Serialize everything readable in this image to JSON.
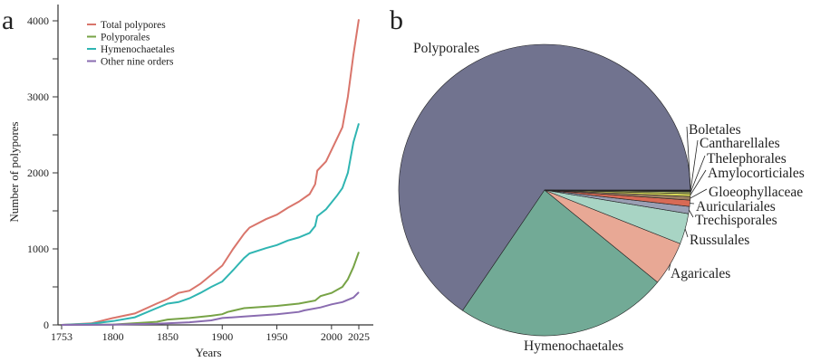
{
  "chart_data": [
    {
      "panel": "a",
      "type": "line",
      "xlabel": "Years",
      "ylabel": "Number of polypores",
      "xlim": [
        1753,
        2025
      ],
      "ylim": [
        0,
        4000
      ],
      "xticks": [
        1753,
        1800,
        1850,
        1900,
        1950,
        2000,
        2025
      ],
      "yticks": [
        0,
        1000,
        2000,
        3000,
        4000
      ],
      "legend_position": "top-left",
      "series": [
        {
          "name": "Total polypores",
          "color": "#d9756b",
          "x": [
            1753,
            1780,
            1800,
            1820,
            1840,
            1850,
            1860,
            1870,
            1880,
            1890,
            1900,
            1910,
            1920,
            1925,
            1940,
            1950,
            1960,
            1970,
            1980,
            1985,
            1987,
            1995,
            2005,
            2010,
            2015,
            2020,
            2025
          ],
          "y": [
            0,
            20,
            90,
            150,
            280,
            340,
            420,
            450,
            540,
            660,
            780,
            1000,
            1200,
            1280,
            1390,
            1450,
            1540,
            1620,
            1720,
            1850,
            2030,
            2150,
            2450,
            2600,
            3000,
            3550,
            4020
          ]
        },
        {
          "name": "Polyporales",
          "color": "#77a346",
          "x": [
            1753,
            1800,
            1840,
            1850,
            1870,
            1890,
            1900,
            1905,
            1920,
            1950,
            1970,
            1985,
            1990,
            2000,
            2010,
            2015,
            2020,
            2025
          ],
          "y": [
            0,
            5,
            40,
            70,
            90,
            120,
            140,
            170,
            220,
            250,
            280,
            320,
            380,
            420,
            500,
            600,
            760,
            960
          ]
        },
        {
          "name": "Hymenochaetales",
          "color": "#2fb5b2",
          "x": [
            1753,
            1780,
            1800,
            1820,
            1840,
            1850,
            1860,
            1870,
            1880,
            1890,
            1900,
            1910,
            1920,
            1925,
            1940,
            1950,
            1960,
            1970,
            1980,
            1985,
            1987,
            1995,
            2005,
            2010,
            2015,
            2020,
            2025
          ],
          "y": [
            0,
            15,
            50,
            100,
            220,
            280,
            300,
            350,
            420,
            500,
            570,
            720,
            880,
            940,
            1010,
            1050,
            1110,
            1150,
            1210,
            1300,
            1430,
            1520,
            1700,
            1800,
            2000,
            2400,
            2650
          ]
        },
        {
          "name": "Other nine orders",
          "color": "#8a6cb0",
          "x": [
            1753,
            1800,
            1840,
            1870,
            1890,
            1900,
            1920,
            1950,
            1970,
            1975,
            1990,
            2000,
            2010,
            2020,
            2025
          ],
          "y": [
            0,
            3,
            15,
            35,
            60,
            90,
            110,
            140,
            170,
            190,
            230,
            270,
            300,
            360,
            430
          ]
        }
      ]
    },
    {
      "panel": "b",
      "type": "pie",
      "unit": "percent (estimated)",
      "slices": [
        {
          "label": "Polyporales",
          "value": 65.5,
          "color": "#71738f"
        },
        {
          "label": "Hymenochaetales",
          "value": 23.6,
          "color": "#72aa96"
        },
        {
          "label": "Agaricales",
          "value": 4.9,
          "color": "#e8a895"
        },
        {
          "label": "Russulales",
          "value": 3.4,
          "color": "#a8d4c4"
        },
        {
          "label": "Trechisporales",
          "value": 0.8,
          "color": "#9a9fb4"
        },
        {
          "label": "Auriculariales",
          "value": 0.7,
          "color": "#d86a55"
        },
        {
          "label": "Gloeophyllaceae",
          "value": 0.4,
          "color": "#9a7f62"
        },
        {
          "label": "Amylocorticiales",
          "value": 0.3,
          "color": "#d8d85a"
        },
        {
          "label": "Thelephorales",
          "value": 0.2,
          "color": "#b8c86a"
        },
        {
          "label": "Cantharellales",
          "value": 0.1,
          "color": "#555555"
        },
        {
          "label": "Boletales",
          "value": 0.1,
          "color": "#111111"
        }
      ]
    }
  ]
}
